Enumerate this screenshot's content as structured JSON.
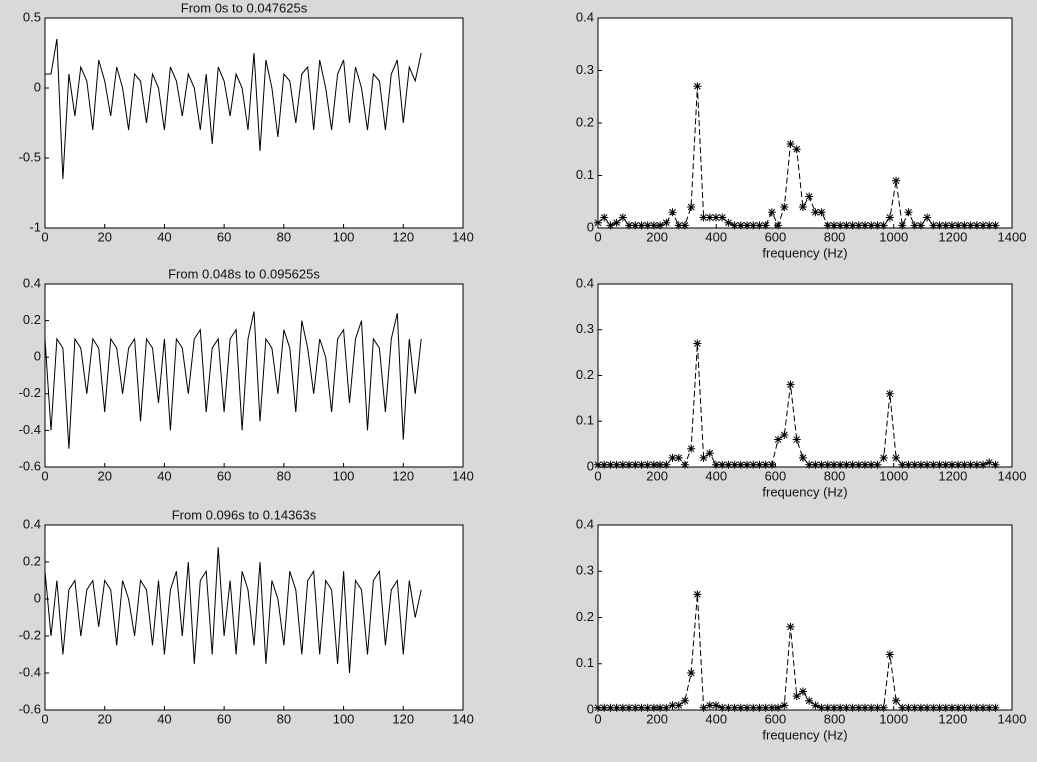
{
  "chart_data": [
    {
      "type": "line",
      "title": "From 0s to 0.047625s",
      "x": [
        0,
        2,
        4,
        6,
        8,
        10,
        12,
        14,
        16,
        18,
        20,
        22,
        24,
        26,
        28,
        30,
        32,
        34,
        36,
        38,
        40,
        42,
        44,
        46,
        48,
        50,
        52,
        54,
        56,
        58,
        60,
        62,
        64,
        66,
        68,
        70,
        72,
        74,
        76,
        78,
        80,
        82,
        84,
        86,
        88,
        90,
        92,
        94,
        96,
        98,
        100,
        102,
        104,
        106,
        108,
        110,
        112,
        114,
        116,
        118,
        120,
        122,
        124,
        126
      ],
      "values": [
        0.1,
        0.1,
        0.35,
        -0.65,
        0.1,
        -0.2,
        0.15,
        0.05,
        -0.3,
        0.2,
        0.05,
        -0.2,
        0.15,
        0.0,
        -0.3,
        0.1,
        0.05,
        -0.25,
        0.1,
        0.0,
        -0.3,
        0.15,
        0.05,
        -0.2,
        0.1,
        0.0,
        -0.3,
        0.1,
        -0.4,
        0.15,
        0.05,
        -0.2,
        0.1,
        0.0,
        -0.3,
        0.25,
        -0.45,
        0.2,
        0.0,
        -0.35,
        0.1,
        0.05,
        -0.25,
        0.1,
        0.15,
        -0.3,
        0.2,
        0.0,
        -0.3,
        0.1,
        0.2,
        -0.25,
        0.15,
        0.0,
        -0.3,
        0.1,
        0.05,
        -0.3,
        0.1,
        0.2,
        -0.25,
        0.15,
        0.05,
        0.25
      ],
      "color": "#000000",
      "xlim": [
        0,
        140
      ],
      "ylim": [
        -1,
        0.5
      ],
      "xticks": [
        0,
        20,
        40,
        60,
        80,
        100,
        120,
        140
      ],
      "yticks": [
        -1,
        -0.5,
        0,
        0.5
      ]
    },
    {
      "type": "line",
      "title": "From 0.048s to 0.095625s",
      "x": [
        0,
        2,
        4,
        6,
        8,
        10,
        12,
        14,
        16,
        18,
        20,
        22,
        24,
        26,
        28,
        30,
        32,
        34,
        36,
        38,
        40,
        42,
        44,
        46,
        48,
        50,
        52,
        54,
        56,
        58,
        60,
        62,
        64,
        66,
        68,
        70,
        72,
        74,
        76,
        78,
        80,
        82,
        84,
        86,
        88,
        90,
        92,
        94,
        96,
        98,
        100,
        102,
        104,
        106,
        108,
        110,
        112,
        114,
        116,
        118,
        120,
        122,
        124,
        126
      ],
      "values": [
        0.1,
        -0.4,
        0.1,
        0.05,
        -0.5,
        0.1,
        0.05,
        -0.2,
        0.1,
        0.05,
        -0.3,
        0.1,
        0.05,
        -0.2,
        0.05,
        0.1,
        -0.35,
        0.1,
        0.05,
        -0.25,
        0.1,
        -0.4,
        0.1,
        0.05,
        -0.2,
        0.1,
        0.15,
        -0.3,
        0.05,
        0.1,
        -0.3,
        0.1,
        0.15,
        -0.4,
        0.1,
        0.25,
        -0.35,
        0.1,
        0.05,
        -0.2,
        0.15,
        0.05,
        -0.3,
        0.2,
        0.05,
        -0.2,
        0.1,
        0.0,
        -0.3,
        0.1,
        0.15,
        -0.25,
        0.1,
        0.2,
        -0.4,
        0.1,
        0.05,
        -0.3,
        0.1,
        0.24,
        -0.45,
        0.1,
        -0.2,
        0.1
      ],
      "color": "#000000",
      "xlim": [
        0,
        140
      ],
      "ylim": [
        -0.6,
        0.4
      ],
      "xticks": [
        0,
        20,
        40,
        60,
        80,
        100,
        120,
        140
      ],
      "yticks": [
        -0.6,
        -0.4,
        -0.2,
        0,
        0.2,
        0.4
      ]
    },
    {
      "type": "line",
      "title": "From 0.096s to 0.14363s",
      "x": [
        0,
        2,
        4,
        6,
        8,
        10,
        12,
        14,
        16,
        18,
        20,
        22,
        24,
        26,
        28,
        30,
        32,
        34,
        36,
        38,
        40,
        42,
        44,
        46,
        48,
        50,
        52,
        54,
        56,
        58,
        60,
        62,
        64,
        66,
        68,
        70,
        72,
        74,
        76,
        78,
        80,
        82,
        84,
        86,
        88,
        90,
        92,
        94,
        96,
        98,
        100,
        102,
        104,
        106,
        108,
        110,
        112,
        114,
        116,
        118,
        120,
        122,
        124,
        126
      ],
      "values": [
        0.15,
        -0.2,
        0.1,
        -0.3,
        0.05,
        0.1,
        -0.2,
        0.05,
        0.1,
        -0.15,
        0.1,
        0.05,
        -0.25,
        0.1,
        0.0,
        -0.2,
        0.1,
        0.05,
        -0.25,
        0.1,
        -0.3,
        0.05,
        0.15,
        -0.2,
        0.2,
        -0.35,
        0.1,
        0.15,
        -0.3,
        0.28,
        -0.2,
        0.1,
        -0.3,
        0.15,
        0.05,
        -0.25,
        0.2,
        -0.35,
        0.1,
        0.0,
        -0.25,
        0.15,
        0.05,
        -0.3,
        0.1,
        0.15,
        -0.3,
        0.1,
        0.05,
        -0.35,
        0.15,
        -0.4,
        0.1,
        0.05,
        -0.3,
        0.1,
        0.15,
        -0.25,
        0.05,
        0.1,
        -0.3,
        0.1,
        -0.1,
        0.05
      ],
      "color": "#000000",
      "xlim": [
        0,
        140
      ],
      "ylim": [
        -0.6,
        0.4
      ],
      "xticks": [
        0,
        20,
        40,
        60,
        80,
        100,
        120,
        140
      ],
      "yticks": [
        -0.6,
        -0.4,
        -0.2,
        0,
        0.2,
        0.4
      ]
    },
    {
      "type": "spectrum",
      "x_label": "frequency (Hz)",
      "x": [
        0,
        21,
        42,
        63,
        84,
        105,
        126,
        147,
        168,
        189,
        210,
        231,
        252,
        273,
        294,
        315,
        336,
        357,
        378,
        399,
        420,
        441,
        462,
        483,
        504,
        525,
        546,
        567,
        588,
        609,
        630,
        651,
        672,
        693,
        714,
        735,
        756,
        777,
        798,
        819,
        840,
        861,
        882,
        903,
        924,
        945,
        966,
        987,
        1008,
        1029,
        1050,
        1071,
        1092,
        1113,
        1134,
        1155,
        1176,
        1197,
        1218,
        1239,
        1260,
        1281,
        1302,
        1323,
        1344
      ],
      "values": [
        0.01,
        0.02,
        0.005,
        0.01,
        0.02,
        0.005,
        0.005,
        0.005,
        0.005,
        0.005,
        0.005,
        0.01,
        0.03,
        0.005,
        0.005,
        0.04,
        0.27,
        0.02,
        0.02,
        0.02,
        0.02,
        0.01,
        0.005,
        0.005,
        0.005,
        0.005,
        0.005,
        0.005,
        0.03,
        0.005,
        0.04,
        0.16,
        0.15,
        0.04,
        0.06,
        0.03,
        0.03,
        0.005,
        0.005,
        0.005,
        0.005,
        0.005,
        0.005,
        0.005,
        0.005,
        0.005,
        0.005,
        0.02,
        0.09,
        0.005,
        0.03,
        0.005,
        0.005,
        0.02,
        0.005,
        0.005,
        0.005,
        0.005,
        0.005,
        0.005,
        0.005,
        0.005,
        0.005,
        0.005,
        0.005
      ],
      "color": "#000000",
      "xlim": [
        0,
        1400
      ],
      "ylim": [
        0,
        0.4
      ],
      "xticks": [
        0,
        200,
        400,
        600,
        800,
        1000,
        1200,
        1400
      ],
      "yticks": [
        0,
        0.1,
        0.2,
        0.3,
        0.4
      ]
    },
    {
      "type": "spectrum",
      "x_label": "frequency (Hz)",
      "x": [
        0,
        21,
        42,
        63,
        84,
        105,
        126,
        147,
        168,
        189,
        210,
        231,
        252,
        273,
        294,
        315,
        336,
        357,
        378,
        399,
        420,
        441,
        462,
        483,
        504,
        525,
        546,
        567,
        588,
        609,
        630,
        651,
        672,
        693,
        714,
        735,
        756,
        777,
        798,
        819,
        840,
        861,
        882,
        903,
        924,
        945,
        966,
        987,
        1008,
        1029,
        1050,
        1071,
        1092,
        1113,
        1134,
        1155,
        1176,
        1197,
        1218,
        1239,
        1260,
        1281,
        1302,
        1323,
        1344
      ],
      "values": [
        0.005,
        0.005,
        0.005,
        0.005,
        0.005,
        0.005,
        0.005,
        0.005,
        0.005,
        0.005,
        0.005,
        0.005,
        0.02,
        0.02,
        0.005,
        0.04,
        0.27,
        0.02,
        0.03,
        0.005,
        0.005,
        0.005,
        0.005,
        0.005,
        0.005,
        0.005,
        0.005,
        0.005,
        0.005,
        0.06,
        0.07,
        0.18,
        0.06,
        0.02,
        0.005,
        0.005,
        0.005,
        0.005,
        0.005,
        0.005,
        0.005,
        0.005,
        0.005,
        0.005,
        0.005,
        0.005,
        0.02,
        0.16,
        0.02,
        0.005,
        0.005,
        0.005,
        0.005,
        0.005,
        0.005,
        0.005,
        0.005,
        0.005,
        0.005,
        0.005,
        0.005,
        0.005,
        0.005,
        0.01,
        0.005
      ],
      "color": "#000000",
      "xlim": [
        0,
        1400
      ],
      "ylim": [
        0,
        0.4
      ],
      "xticks": [
        0,
        200,
        400,
        600,
        800,
        1000,
        1200,
        1400
      ],
      "yticks": [
        0,
        0.1,
        0.2,
        0.3,
        0.4
      ]
    },
    {
      "type": "spectrum",
      "x_label": "frequency (Hz)",
      "x": [
        0,
        21,
        42,
        63,
        84,
        105,
        126,
        147,
        168,
        189,
        210,
        231,
        252,
        273,
        294,
        315,
        336,
        357,
        378,
        399,
        420,
        441,
        462,
        483,
        504,
        525,
        546,
        567,
        588,
        609,
        630,
        651,
        672,
        693,
        714,
        735,
        756,
        777,
        798,
        819,
        840,
        861,
        882,
        903,
        924,
        945,
        966,
        987,
        1008,
        1029,
        1050,
        1071,
        1092,
        1113,
        1134,
        1155,
        1176,
        1197,
        1218,
        1239,
        1260,
        1281,
        1302,
        1323,
        1344
      ],
      "values": [
        0.005,
        0.005,
        0.005,
        0.005,
        0.005,
        0.005,
        0.005,
        0.005,
        0.005,
        0.005,
        0.005,
        0.005,
        0.01,
        0.01,
        0.02,
        0.08,
        0.25,
        0.005,
        0.01,
        0.01,
        0.005,
        0.005,
        0.005,
        0.005,
        0.005,
        0.005,
        0.005,
        0.005,
        0.005,
        0.005,
        0.01,
        0.18,
        0.03,
        0.04,
        0.02,
        0.01,
        0.005,
        0.005,
        0.005,
        0.005,
        0.005,
        0.005,
        0.005,
        0.005,
        0.005,
        0.005,
        0.005,
        0.12,
        0.02,
        0.005,
        0.005,
        0.005,
        0.005,
        0.005,
        0.005,
        0.005,
        0.005,
        0.005,
        0.005,
        0.005,
        0.005,
        0.005,
        0.005,
        0.005,
        0.005
      ],
      "color": "#000000",
      "xlim": [
        0,
        1400
      ],
      "ylim": [
        0,
        0.4
      ],
      "xticks": [
        0,
        200,
        400,
        600,
        800,
        1000,
        1200,
        1400
      ],
      "yticks": [
        0,
        0.1,
        0.2,
        0.3,
        0.4
      ]
    }
  ]
}
